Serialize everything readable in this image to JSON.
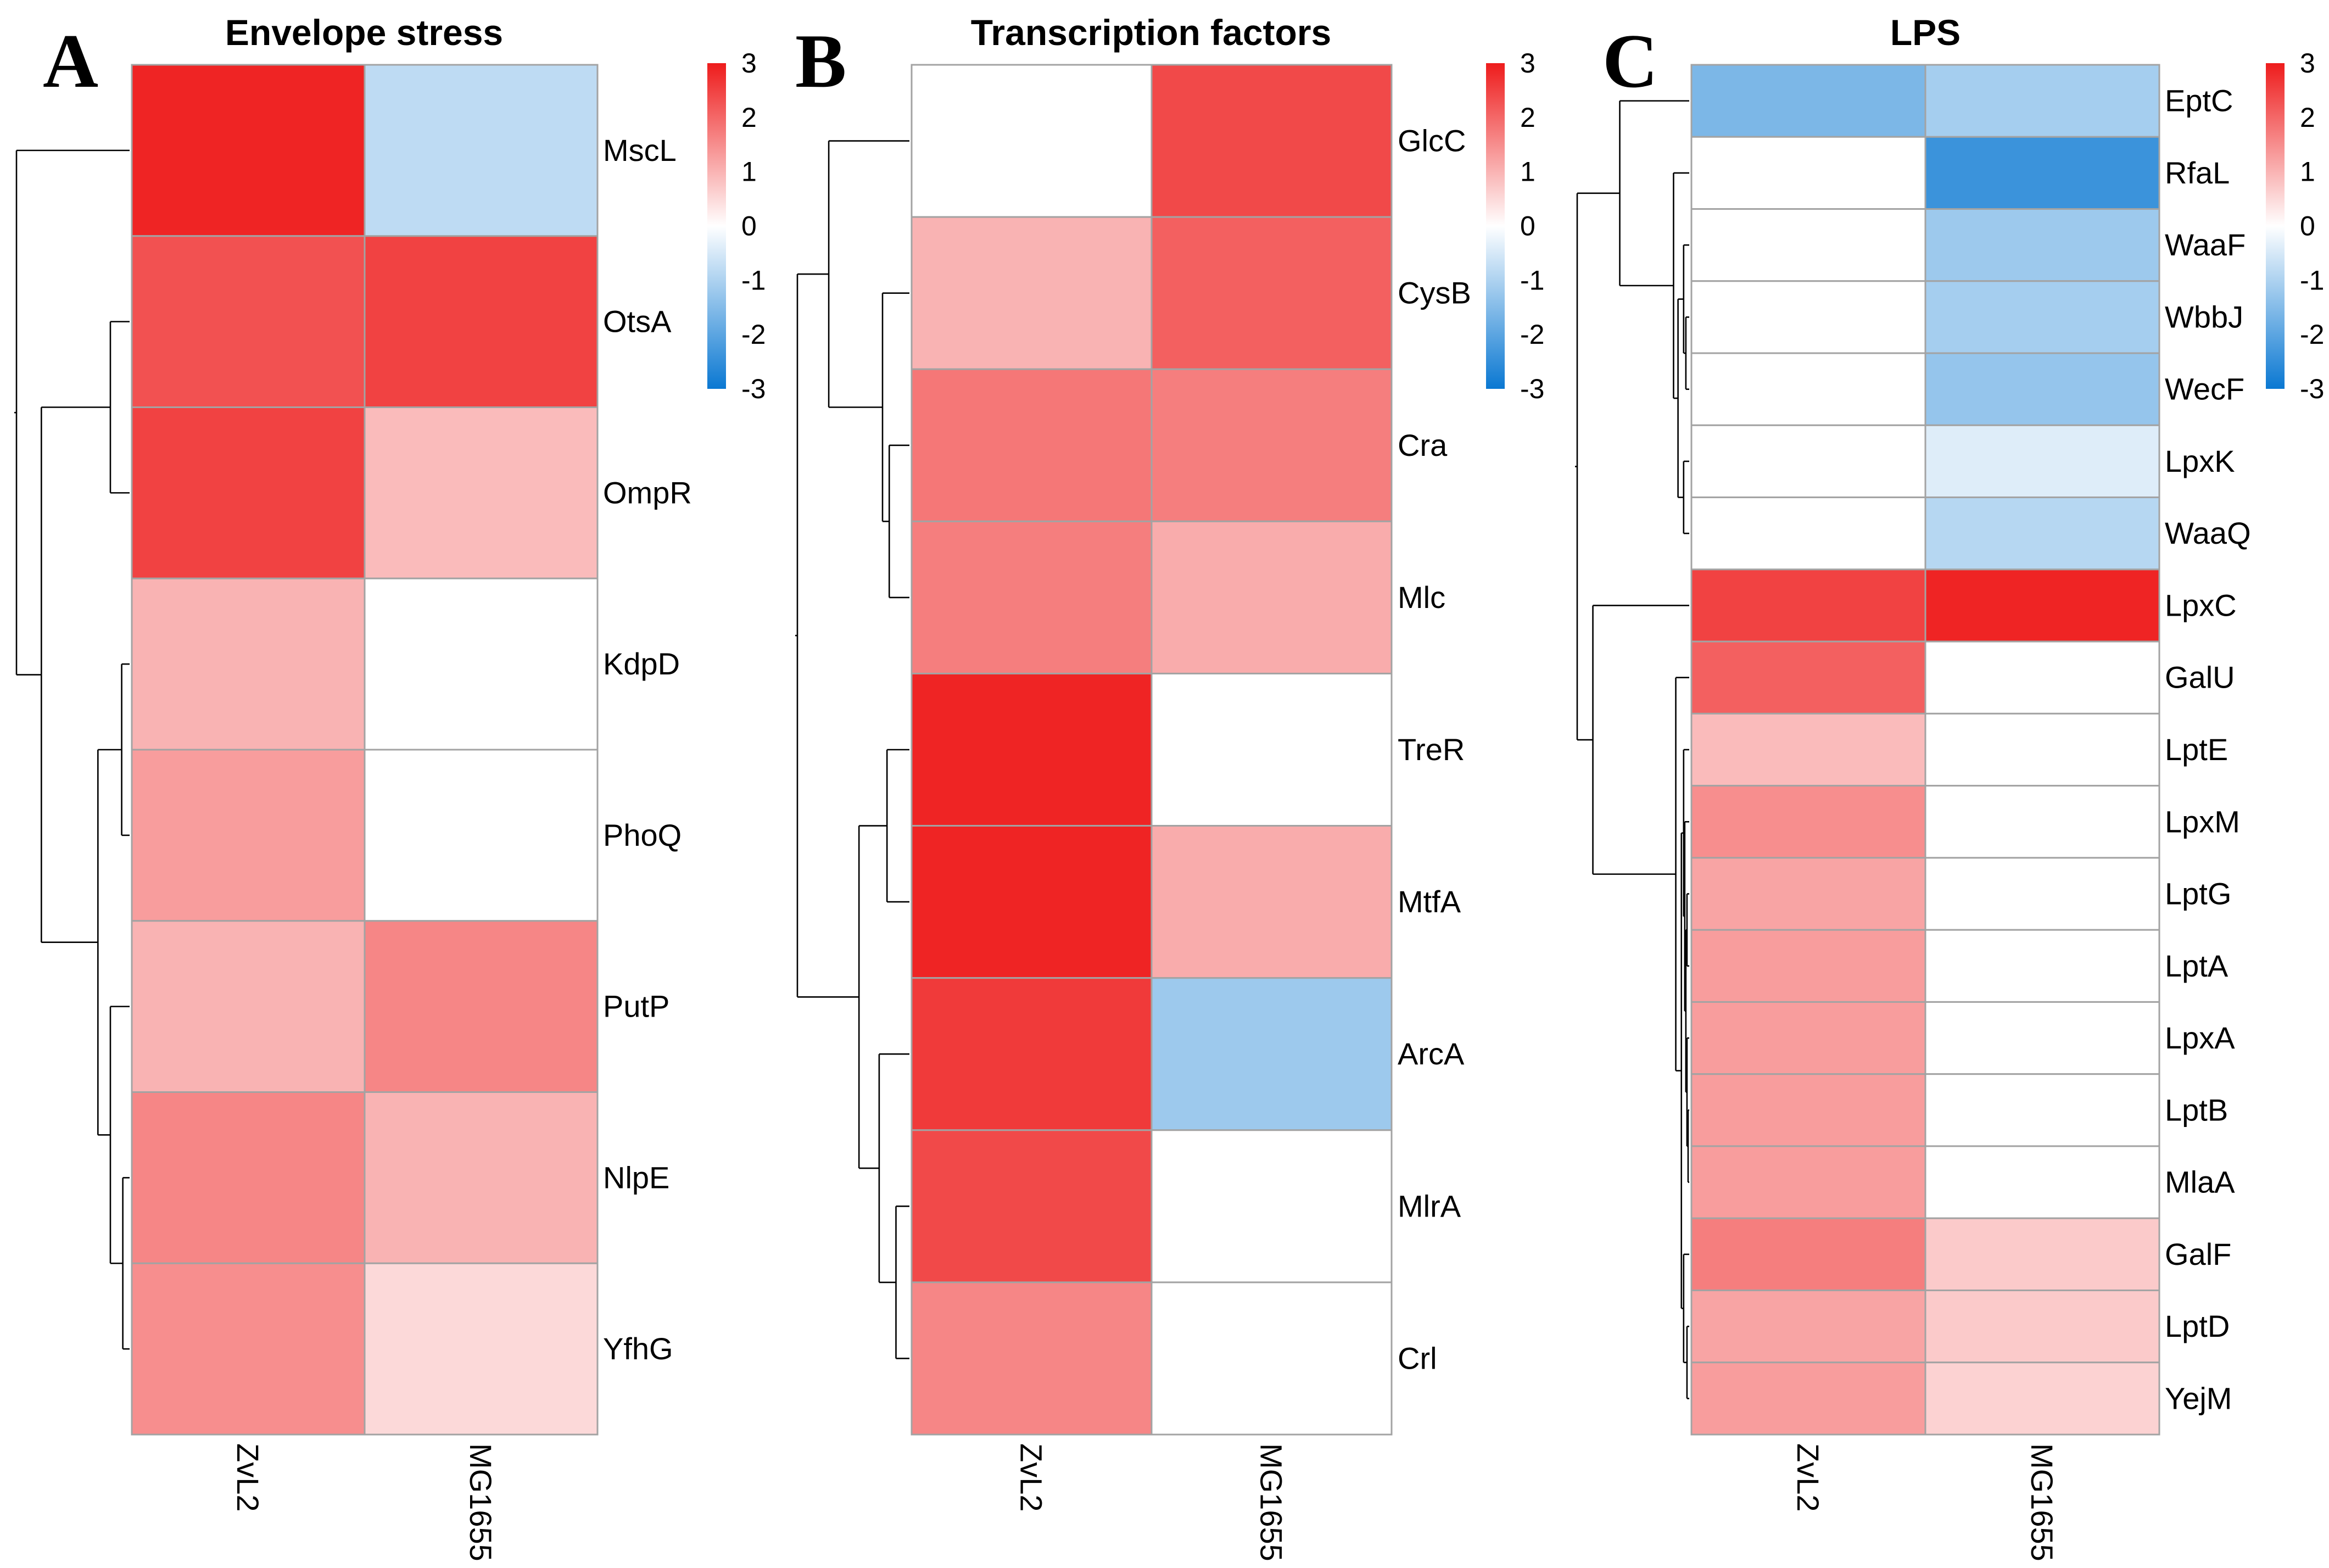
{
  "chart_data": [
    {
      "type": "heatmap",
      "panel_letter": "A",
      "title": "Envelope stress",
      "columns": [
        "ZvL2",
        "MG1655"
      ],
      "rows": [
        "MscL",
        "OtsA",
        "OmpR",
        "KdpD",
        "PhoQ",
        "PutP",
        "NlpE",
        "YfhG"
      ],
      "values": [
        [
          2.9,
          -0.8
        ],
        [
          2.3,
          2.5
        ],
        [
          2.5,
          0.9
        ],
        [
          1.0,
          0.0
        ],
        [
          1.3,
          0.0
        ],
        [
          1.0,
          1.6
        ],
        [
          1.6,
          1.0
        ],
        [
          1.5,
          0.5
        ]
      ],
      "color_scale": {
        "min": -3,
        "max": 3,
        "ticks": [
          3,
          2,
          1,
          0,
          -1,
          -2,
          -3
        ],
        "low_color": "#0a78d2",
        "mid_color": "#ffffff",
        "high_color": "#ee1c1c"
      },
      "row_dendrogram": true
    },
    {
      "type": "heatmap",
      "panel_letter": "B",
      "title": "Transcription factors",
      "columns": [
        "ZvL2",
        "MG1655"
      ],
      "rows": [
        "GlcC",
        "CysB",
        "Cra",
        "Mlc",
        "TreR",
        "MtfA",
        "ArcA",
        "MlrA",
        "Crl"
      ],
      "values": [
        [
          0.0,
          2.4
        ],
        [
          1.0,
          2.1
        ],
        [
          1.8,
          1.7
        ],
        [
          1.7,
          1.1
        ],
        [
          2.9,
          0.0
        ],
        [
          2.9,
          1.1
        ],
        [
          2.6,
          -1.2
        ],
        [
          2.4,
          0.0
        ],
        [
          1.6,
          0.0
        ]
      ],
      "color_scale": {
        "min": -3,
        "max": 3,
        "ticks": [
          3,
          2,
          1,
          0,
          -1,
          -2,
          -3
        ],
        "low_color": "#0a78d2",
        "mid_color": "#ffffff",
        "high_color": "#ee1c1c"
      },
      "row_dendrogram": true
    },
    {
      "type": "heatmap",
      "panel_letter": "C",
      "title": "LPS",
      "columns": [
        "ZvL2",
        "MG1655"
      ],
      "rows": [
        "EptC",
        "RfaL",
        "WaaF",
        "WbbJ",
        "WecF",
        "LpxK",
        "WaaQ",
        "LpxC",
        "GalU",
        "LptE",
        "LpxM",
        "LptG",
        "LptA",
        "LpxA",
        "LptB",
        "MlaA",
        "GalF",
        "LptD",
        "YejM"
      ],
      "values": [
        [
          -1.6,
          -1.1
        ],
        [
          0.0,
          -2.4
        ],
        [
          0.0,
          -1.2
        ],
        [
          0.0,
          -1.1
        ],
        [
          0.0,
          -1.3
        ],
        [
          0.0,
          -0.4
        ],
        [
          0.0,
          -0.9
        ],
        [
          2.5,
          2.9
        ],
        [
          2.1,
          0.0
        ],
        [
          0.9,
          0.0
        ],
        [
          1.5,
          0.0
        ],
        [
          1.2,
          0.0
        ],
        [
          1.3,
          0.0
        ],
        [
          1.3,
          0.0
        ],
        [
          1.3,
          0.0
        ],
        [
          1.3,
          0.0
        ],
        [
          1.7,
          0.7
        ],
        [
          1.2,
          0.7
        ],
        [
          1.3,
          0.6
        ]
      ],
      "color_scale": {
        "min": -3,
        "max": 3,
        "ticks": [
          3,
          2,
          1,
          0,
          -1,
          -2,
          -3
        ],
        "low_color": "#0a78d2",
        "mid_color": "#ffffff",
        "high_color": "#ee1c1c"
      },
      "row_dendrogram": true
    }
  ]
}
